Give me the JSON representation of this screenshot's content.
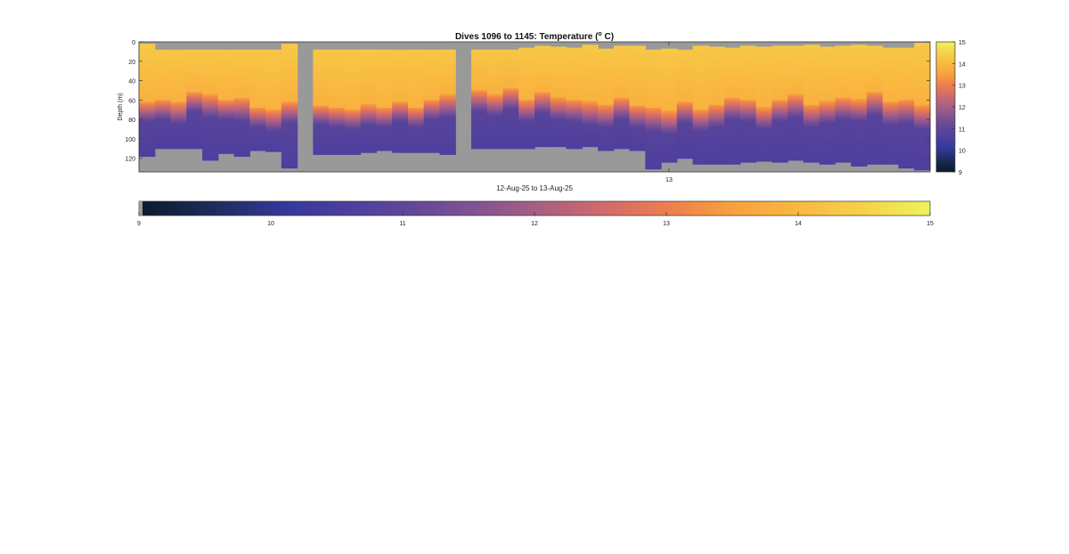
{
  "chart_data": {
    "type": "heatmap",
    "title_main": "Dives 1096 to 1145: Temperature (",
    "title_sup": "o",
    "title_end": " C)",
    "ylabel": "Depth (m)",
    "xlabel": "12-Aug-25 to 13-Aug-25",
    "x_tick_labels": [
      "13"
    ],
    "y_ticks": [
      0,
      20,
      40,
      60,
      80,
      100,
      120
    ],
    "ylim": [
      0,
      134
    ],
    "y_reversed": true,
    "dives": {
      "first": 1096,
      "last": 1145,
      "count": 50
    },
    "x_tick_dive_index": 33,
    "colorbar_right": {
      "ticks": [
        9,
        10,
        11,
        12,
        13,
        14,
        15
      ],
      "clim": [
        9,
        15
      ]
    },
    "colorbar_bottom": {
      "ticks": [
        9,
        10,
        11,
        12,
        13,
        14,
        15
      ],
      "clim": [
        9,
        15
      ]
    },
    "missing_color": "#999999",
    "colormap_stops": [
      {
        "value": 9.0,
        "color": "#0b1a2c"
      },
      {
        "value": 9.6,
        "color": "#1e2c5e"
      },
      {
        "value": 10.1,
        "color": "#34389c"
      },
      {
        "value": 10.6,
        "color": "#4e3f9f"
      },
      {
        "value": 11.0,
        "color": "#5d4699"
      },
      {
        "value": 11.5,
        "color": "#7e5193"
      },
      {
        "value": 12.0,
        "color": "#a65e85"
      },
      {
        "value": 12.5,
        "color": "#ce6a6c"
      },
      {
        "value": 13.0,
        "color": "#ed7d4e"
      },
      {
        "value": 13.5,
        "color": "#f7a13c"
      },
      {
        "value": 14.0,
        "color": "#f9b841"
      },
      {
        "value": 14.5,
        "color": "#f6d24a"
      },
      {
        "value": 15.0,
        "color": "#eef25d"
      }
    ],
    "dive_profiles": {
      "surface_gap_m": [
        2,
        8,
        8,
        8,
        8,
        8,
        8,
        8,
        8,
        2,
        134,
        8,
        8,
        8,
        8,
        8,
        8,
        8,
        8,
        8,
        134,
        8,
        8,
        8,
        6,
        4,
        5,
        6,
        3,
        7,
        4,
        4,
        8,
        7,
        8,
        4,
        5,
        6,
        4,
        5,
        4,
        4,
        3,
        5,
        4,
        3,
        4,
        6,
        6,
        1
      ],
      "thermocline_m": [
        62,
        60,
        62,
        52,
        55,
        60,
        58,
        68,
        70,
        62,
        60,
        66,
        68,
        70,
        65,
        68,
        62,
        68,
        60,
        55,
        60,
        50,
        55,
        48,
        60,
        52,
        58,
        60,
        62,
        65,
        58,
        66,
        68,
        72,
        62,
        70,
        65,
        58,
        60,
        68,
        60,
        55,
        65,
        62,
        58,
        60,
        52,
        62,
        60,
        66
      ],
      "cold_start_m": [
        82,
        80,
        85,
        72,
        78,
        80,
        82,
        88,
        92,
        84,
        80,
        85,
        88,
        90,
        86,
        88,
        82,
        88,
        80,
        78,
        82,
        72,
        76,
        70,
        82,
        74,
        80,
        82,
        86,
        88,
        80,
        88,
        92,
        95,
        84,
        92,
        88,
        80,
        82,
        90,
        82,
        78,
        88,
        84,
        80,
        82,
        76,
        86,
        84,
        90
      ],
      "max_depth_m": [
        118,
        110,
        110,
        110,
        122,
        115,
        118,
        112,
        113,
        130,
        116,
        116,
        116,
        116,
        114,
        112,
        114,
        114,
        114,
        116,
        120,
        110,
        110,
        110,
        110,
        108,
        108,
        110,
        108,
        112,
        110,
        112,
        131,
        124,
        120,
        126,
        126,
        126,
        124,
        123,
        124,
        122,
        124,
        126,
        124,
        128,
        126,
        126,
        130,
        132
      ]
    }
  }
}
